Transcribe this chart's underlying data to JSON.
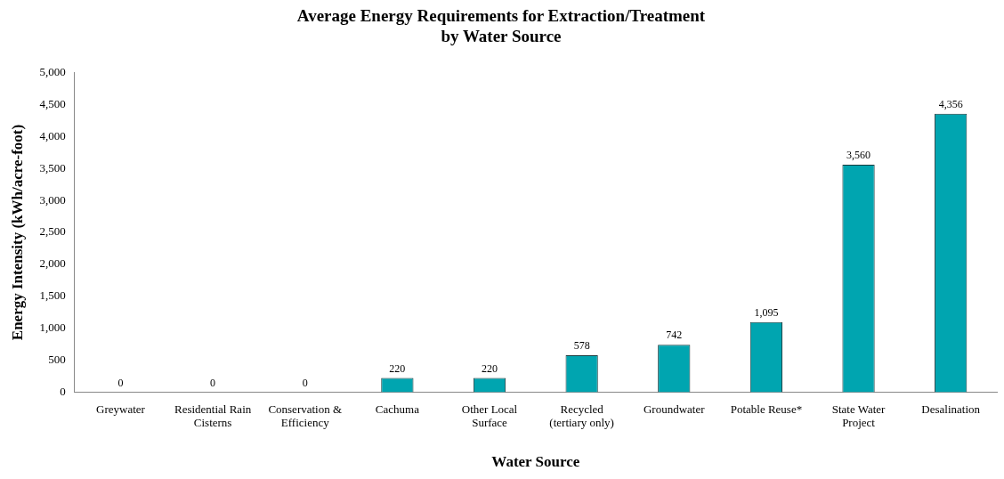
{
  "chart_data": {
    "type": "bar",
    "title": "Average Energy Requirements for Extraction/Treatment\nby Water Source",
    "xlabel": "Water Source",
    "ylabel": "Energy Intensity (kWh/acre-foot)",
    "categories": [
      "Greywater",
      "Residential Rain Cisterns",
      "Conservation & Efficiency",
      "Cachuma",
      "Other Local Surface",
      "Recycled (tertiary only)",
      "Groundwater",
      "Potable Reuse*",
      "State Water Project",
      "Desalination"
    ],
    "values": [
      0,
      0,
      0,
      220,
      220,
      578,
      742,
      1095,
      3560,
      4356
    ],
    "value_labels": [
      "0",
      "0",
      "0",
      "220",
      "220",
      "578",
      "742",
      "1,095",
      "3,560",
      "4,356"
    ],
    "color": "#00a5b0",
    "ylim": [
      0,
      5000
    ],
    "yticks": [
      0,
      {
        "value": 500,
        "label": "500"
      },
      {
        "value": 1000,
        "label": "1,000"
      },
      {
        "value": 1500,
        "label": "1,500"
      },
      {
        "value": 2000,
        "label": "2,000"
      },
      {
        "value": 2500,
        "label": "2,500"
      },
      {
        "value": 3000,
        "label": "3,000"
      },
      {
        "value": 3500,
        "label": "3,500"
      },
      {
        "value": 4000,
        "label": "4,000"
      },
      {
        "value": 4500,
        "label": "4,500"
      },
      {
        "value": 5000,
        "label": "5,000"
      }
    ],
    "grid": false,
    "legend": false
  }
}
